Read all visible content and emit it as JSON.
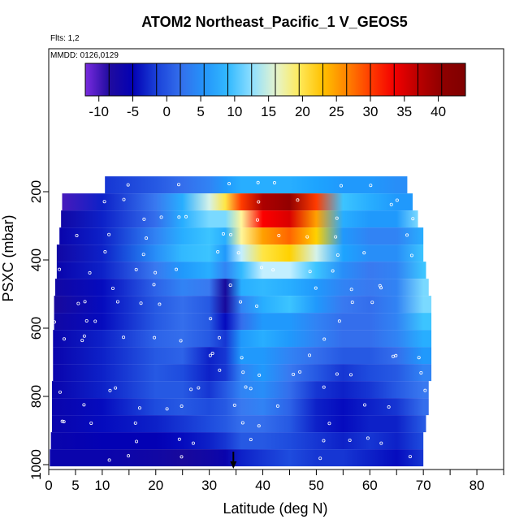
{
  "chart_data": {
    "type": "heatmap",
    "title": "ATOM2 Northeast_Pacific_1 V_GEOS5",
    "flights_label": "Flts: 1,2",
    "dates_label": "MMDD: 0126,0129",
    "xlabel": "Latitude (deg N)",
    "ylabel": "PSXC (mbar)",
    "xlim": [
      0,
      85
    ],
    "ylim": [
      1000,
      0
    ],
    "x_ticks": [
      0,
      5,
      10,
      20,
      30,
      40,
      50,
      60,
      70,
      80
    ],
    "y_ticks": [
      200,
      400,
      600,
      800,
      1000
    ],
    "colorbar": {
      "min": -12,
      "max": 44,
      "step": 3.5,
      "ticks": [
        -10,
        -5,
        0,
        5,
        10,
        15,
        20,
        25,
        30,
        35,
        40
      ],
      "colors": [
        "#7a2be0",
        "#1a0a9a",
        "#0000b8",
        "#2050e0",
        "#3a78f0",
        "#1aa0ff",
        "#40c8ff",
        "#c8f0ff",
        "#fff7a0",
        "#ffd800",
        "#ff9a00",
        "#ff5000",
        "#ff0000",
        "#c00000",
        "#900000",
        "#800000"
      ]
    },
    "layer_pressures": [
      180,
      230,
      280,
      330,
      380,
      430,
      480,
      530,
      580,
      630,
      680,
      730,
      780,
      830,
      880,
      930,
      980
    ],
    "lat_nodes": [
      0,
      10,
      20,
      25,
      30,
      33,
      36,
      40,
      45,
      50,
      55,
      60,
      65,
      70
    ],
    "values": [
      [
        null,
        -2,
        0,
        2,
        4,
        6,
        8,
        8,
        8,
        7,
        6,
        6,
        5,
        null
      ],
      [
        -10,
        -3,
        3,
        8,
        15,
        20,
        30,
        38,
        40,
        30,
        10,
        8,
        6,
        null
      ],
      [
        -7,
        -3,
        2,
        8,
        12,
        12,
        18,
        33,
        35,
        25,
        8,
        6,
        6,
        12
      ],
      [
        -6,
        -3,
        4,
        8,
        10,
        8,
        18,
        25,
        28,
        22,
        6,
        4,
        4,
        8
      ],
      [
        -7,
        -3,
        5,
        9,
        10,
        6,
        14,
        20,
        22,
        15,
        7,
        5,
        5,
        10
      ],
      [
        -6,
        -3,
        3,
        6,
        8,
        4,
        9,
        14,
        14,
        10,
        5,
        3,
        4,
        10
      ],
      [
        -7,
        -4,
        1,
        4,
        3,
        -8,
        8,
        9,
        8,
        6,
        4,
        3,
        4,
        12
      ],
      [
        -8,
        -4,
        0,
        2,
        0,
        -8,
        4,
        8,
        10,
        6,
        3,
        2,
        4,
        12
      ],
      [
        -7,
        -4,
        0,
        2,
        0,
        -4,
        2,
        6,
        6,
        4,
        2,
        2,
        4,
        10
      ],
      [
        -6,
        -3,
        1,
        2,
        0,
        -2,
        6,
        8,
        6,
        4,
        2,
        2,
        4,
        8
      ],
      [
        -6,
        -3,
        0,
        1,
        -3,
        -2,
        6,
        6,
        4,
        2,
        0,
        0,
        2,
        6
      ],
      [
        -6,
        -3,
        0,
        -1,
        -3,
        -2,
        4,
        6,
        3,
        0,
        -2,
        -1,
        0,
        4
      ],
      [
        -6,
        -3,
        0,
        0,
        -2,
        0,
        4,
        5,
        2,
        -2,
        -3,
        -2,
        0,
        3
      ],
      [
        -6,
        -4,
        -1,
        0,
        -1,
        0,
        3,
        4,
        1,
        -3,
        -4,
        -3,
        -2,
        2
      ],
      [
        -6,
        -4,
        -3,
        -2,
        -1,
        0,
        2,
        2,
        0,
        -3,
        -4,
        -3,
        -3,
        0
      ],
      [
        -6,
        -5,
        -5,
        -4,
        -3,
        -2,
        0,
        0,
        -1,
        -2,
        -3,
        -2,
        -3,
        -1
      ],
      [
        -6,
        -6,
        -7,
        -8,
        -7,
        -6,
        -3,
        -2,
        -1,
        -2,
        -2,
        -3,
        -4,
        -2
      ]
    ],
    "row_extent": [
      [
        10.5,
        67
      ],
      [
        2.5,
        68
      ],
      [
        2.3,
        69
      ],
      [
        2.0,
        70
      ],
      [
        1.5,
        70
      ],
      [
        1.5,
        70.5
      ],
      [
        1.2,
        71
      ],
      [
        1.0,
        71.5
      ],
      [
        1.0,
        71.5
      ],
      [
        0.8,
        71.5
      ],
      [
        0.8,
        71.5
      ],
      [
        0.8,
        71.5
      ],
      [
        0.6,
        71
      ],
      [
        0.6,
        71
      ],
      [
        0.6,
        70.5
      ],
      [
        0.4,
        70
      ],
      [
        0.2,
        70
      ]
    ],
    "marker_lat": 34.5,
    "marker_label": "arrow"
  }
}
